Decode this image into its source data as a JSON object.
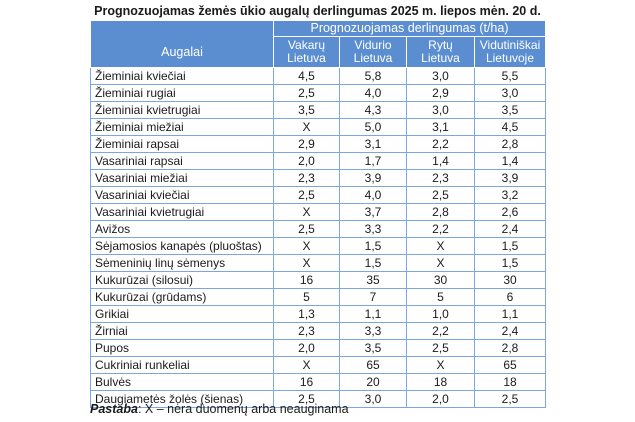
{
  "title": "Prognozuojamas žemės ūkio augalų derlingumas 2025 m. liepos mėn. 20 d.",
  "table": {
    "crop_header": "Augalai",
    "group_header": "Prognozuojamas derlingumas (t/ha)",
    "region_headers": [
      [
        "Vakarų",
        "Lietuva"
      ],
      [
        "Vidurio",
        "Lietuva"
      ],
      [
        "Rytų",
        "Lietuva"
      ],
      [
        "Vidutiniškai",
        "Lietuvoje"
      ]
    ],
    "rows": [
      [
        "Žieminiai kviečiai",
        "4,5",
        "5,8",
        "3,0",
        "5,5"
      ],
      [
        "Žieminiai rugiai",
        "2,5",
        "4,0",
        "2,9",
        "3,0"
      ],
      [
        "Žieminiai kvietrugiai",
        "3,5",
        "4,3",
        "3,0",
        "3,5"
      ],
      [
        "Žieminiai miežiai",
        "X",
        "5,0",
        "3,1",
        "4,5"
      ],
      [
        "Žieminiai rapsai",
        "2,9",
        "3,1",
        "2,2",
        "2,8"
      ],
      [
        "Vasariniai rapsai",
        "2,0",
        "1,7",
        "1,4",
        "1,4"
      ],
      [
        "Vasariniai miežiai",
        "2,3",
        "3,9",
        "2,3",
        "3,9"
      ],
      [
        "Vasariniai kviečiai",
        "2,5",
        "4,0",
        "2,5",
        "3,2"
      ],
      [
        "Vasariniai kvietrugiai",
        "X",
        "3,7",
        "2,8",
        "2,6"
      ],
      [
        "Avižos",
        "2,5",
        "3,3",
        "2,2",
        "2,4"
      ],
      [
        "Sėjamosios kanapės (pluoštas)",
        "X",
        "1,5",
        "X",
        "1,5"
      ],
      [
        "Sėmeninių linų sėmenys",
        "X",
        "1,5",
        "X",
        "1,5"
      ],
      [
        "Kukurūzai (silosui)",
        "16",
        "35",
        "30",
        "30"
      ],
      [
        "Kukurūzai (grūdams)",
        "5",
        "7",
        "5",
        "6"
      ],
      [
        "Grikiai",
        "1,3",
        "1,1",
        "1,0",
        "1,1"
      ],
      [
        "Žirniai",
        "2,3",
        "3,3",
        "2,2",
        "2,4"
      ],
      [
        "Pupos",
        "2,0",
        "3,5",
        "2,5",
        "2,8"
      ],
      [
        "Cukriniai runkeliai",
        "X",
        "65",
        "X",
        "65"
      ],
      [
        "Bulvės",
        "16",
        "20",
        "18",
        "18"
      ],
      [
        "Daugiametės žolės (šienas)",
        "2,5",
        "3,0",
        "2,0",
        "2,5"
      ]
    ]
  },
  "note": {
    "label": "Pastaba",
    "text": ":  X – nėra duomenų arba neauginama"
  }
}
